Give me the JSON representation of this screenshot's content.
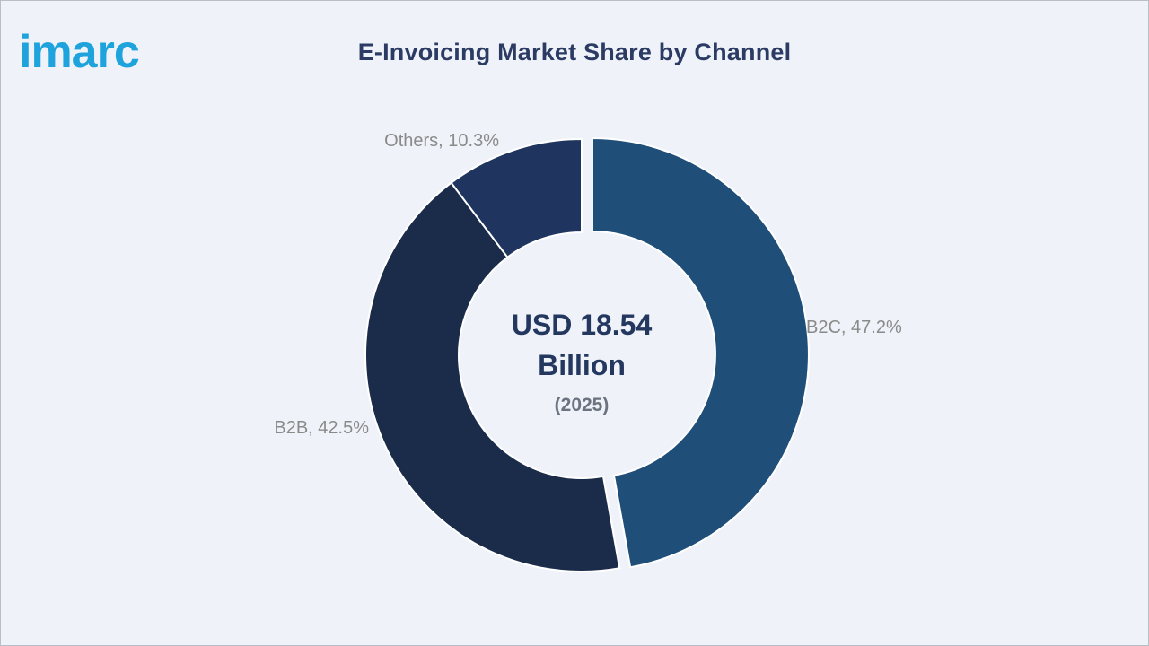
{
  "brand": {
    "logo_text": "imarc",
    "logo_color": "#1fa3dc"
  },
  "chart_data": {
    "type": "pie",
    "variant": "donut",
    "title": "E-Invoicing Market Share by Channel",
    "center_text": {
      "line1": "USD 18.54",
      "line2": "Billion",
      "line3": "(2025)"
    },
    "slices": [
      {
        "label": "B2C",
        "value": 47.2,
        "display": "B2C, 47.2%",
        "color": "#1f4e79",
        "exploded": true
      },
      {
        "label": "B2B",
        "value": 42.5,
        "display": "B2B, 42.5%",
        "color": "#1b2b4a",
        "exploded": false
      },
      {
        "label": "Others",
        "value": 10.3,
        "display": "Others, 10.3%",
        "color": "#1f3560",
        "exploded": false
      }
    ],
    "start_angle_deg": 0,
    "direction": "clockwise",
    "label_color": "#8a8a8a"
  }
}
